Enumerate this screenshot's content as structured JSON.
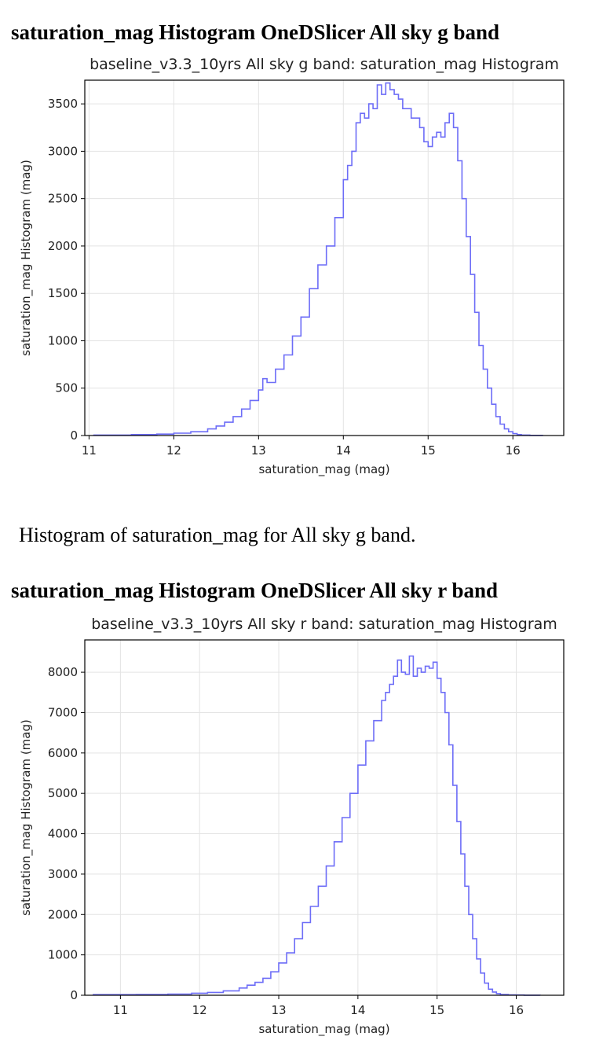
{
  "sections": [
    {
      "heading": "saturation_mag Histogram OneDSlicer All sky g band",
      "caption": "Histogram of saturation_mag for All sky g band."
    },
    {
      "heading": "saturation_mag Histogram OneDSlicer All sky r band",
      "caption": ""
    }
  ],
  "chart_data": [
    {
      "type": "line",
      "style": "step",
      "line_color": "#6d6df7",
      "title": "baseline_v3.3_10yrs All sky g band: saturation_mag Histogram",
      "xlabel": "saturation_mag (mag)",
      "ylabel": "saturation_mag Histogram (mag)",
      "xlim": [
        10.95,
        16.6
      ],
      "ylim": [
        0,
        3750
      ],
      "xticks": [
        11,
        12,
        13,
        14,
        15,
        16
      ],
      "yticks": [
        0,
        500,
        1000,
        1500,
        2000,
        2500,
        3000,
        3500
      ],
      "grid": true,
      "x": [
        11.05,
        11.5,
        11.8,
        12.0,
        12.2,
        12.4,
        12.5,
        12.6,
        12.7,
        12.8,
        12.9,
        13.0,
        13.05,
        13.1,
        13.2,
        13.3,
        13.4,
        13.5,
        13.6,
        13.7,
        13.8,
        13.9,
        14.0,
        14.05,
        14.1,
        14.15,
        14.2,
        14.25,
        14.3,
        14.35,
        14.4,
        14.45,
        14.5,
        14.55,
        14.6,
        14.65,
        14.7,
        14.8,
        14.9,
        14.95,
        15.0,
        15.05,
        15.1,
        15.15,
        15.2,
        15.25,
        15.3,
        15.35,
        15.4,
        15.45,
        15.5,
        15.55,
        15.6,
        15.65,
        15.7,
        15.75,
        15.8,
        15.85,
        15.9,
        15.95,
        16.0,
        16.05,
        16.1,
        16.2,
        16.35
      ],
      "y": [
        5,
        10,
        15,
        25,
        40,
        70,
        100,
        140,
        200,
        280,
        370,
        480,
        600,
        560,
        700,
        850,
        1050,
        1250,
        1550,
        1800,
        2000,
        2300,
        2700,
        2850,
        3000,
        3300,
        3400,
        3350,
        3500,
        3450,
        3700,
        3600,
        3720,
        3650,
        3600,
        3550,
        3450,
        3350,
        3250,
        3100,
        3050,
        3150,
        3200,
        3150,
        3300,
        3400,
        3250,
        2900,
        2500,
        2100,
        1700,
        1300,
        950,
        700,
        500,
        330,
        200,
        120,
        70,
        40,
        20,
        10,
        5,
        2,
        0
      ]
    },
    {
      "type": "line",
      "style": "step",
      "line_color": "#6d6df7",
      "title": "baseline_v3.3_10yrs All sky r band: saturation_mag Histogram",
      "xlabel": "saturation_mag (mag)",
      "ylabel": "saturation_mag Histogram (mag)",
      "xlim": [
        10.55,
        16.6
      ],
      "ylim": [
        0,
        8800
      ],
      "xticks": [
        11,
        12,
        13,
        14,
        15,
        16
      ],
      "yticks": [
        0,
        1000,
        2000,
        3000,
        4000,
        5000,
        6000,
        7000,
        8000
      ],
      "grid": true,
      "x": [
        10.65,
        11.2,
        11.6,
        11.9,
        12.1,
        12.3,
        12.5,
        12.6,
        12.7,
        12.8,
        12.9,
        13.0,
        13.1,
        13.2,
        13.3,
        13.4,
        13.5,
        13.6,
        13.7,
        13.8,
        13.9,
        14.0,
        14.1,
        14.2,
        14.3,
        14.35,
        14.4,
        14.45,
        14.5,
        14.55,
        14.6,
        14.65,
        14.7,
        14.75,
        14.8,
        14.85,
        14.9,
        14.95,
        15.0,
        15.05,
        15.1,
        15.15,
        15.2,
        15.25,
        15.3,
        15.35,
        15.4,
        15.45,
        15.5,
        15.55,
        15.6,
        15.65,
        15.7,
        15.75,
        15.8,
        15.9,
        16.0,
        16.1,
        16.3
      ],
      "y": [
        15,
        20,
        30,
        50,
        70,
        110,
        180,
        250,
        320,
        420,
        580,
        800,
        1050,
        1400,
        1800,
        2200,
        2700,
        3200,
        3800,
        4400,
        5000,
        5700,
        6300,
        6800,
        7300,
        7500,
        7700,
        7900,
        8300,
        8000,
        7950,
        8400,
        7900,
        8100,
        8000,
        8150,
        8100,
        8250,
        7850,
        7500,
        7000,
        6200,
        5200,
        4300,
        3500,
        2700,
        2000,
        1400,
        900,
        550,
        300,
        150,
        80,
        40,
        20,
        10,
        5,
        2,
        0
      ]
    }
  ]
}
